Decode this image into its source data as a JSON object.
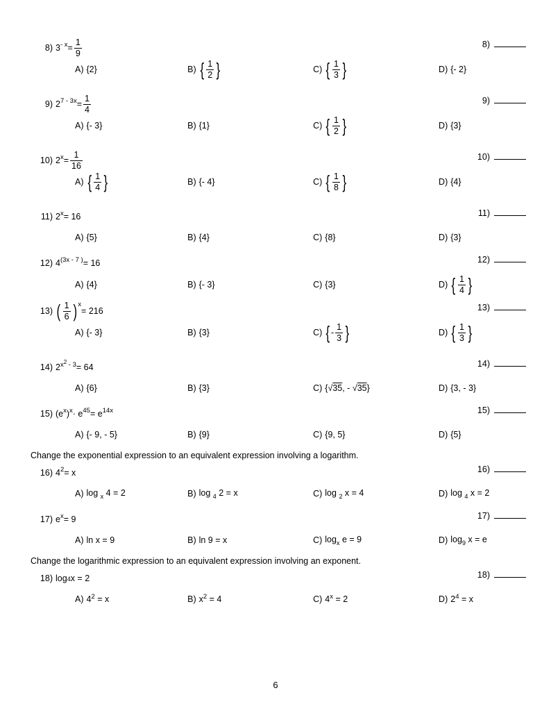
{
  "page_number": "6",
  "sections": [
    {
      "text": "Change the exponential expression to an equivalent expression involving a logarithm.",
      "before": 16
    },
    {
      "text": "Change the logarithmic expression to an equivalent expression involving an exponent.",
      "before": 18
    }
  ],
  "questions": [
    {
      "n": "8",
      "prompt_html": "3<span class='exp'>- x</span> = <span class='frac'><span class='n'>1</span><span class='d'>9</span></span>",
      "a": "{2}",
      "a_frac": null,
      "b_frac": [
        "1",
        "2"
      ],
      "b": null,
      "c_frac": [
        "1",
        "3"
      ],
      "c": null,
      "d": "{- 2}"
    },
    {
      "n": "9",
      "prompt_html": "2<span class='exp'>7 - 3x</span> = <span class='frac'><span class='n'>1</span><span class='d'>4</span></span>",
      "a": "{- 3}",
      "b": "{1}",
      "c_frac": [
        "1",
        "2"
      ],
      "c": null,
      "d": "{3}"
    },
    {
      "n": "10",
      "prompt_html": "2<span class='exp'>x</span> = <span class='frac'><span class='n'>1</span><span class='d'>16</span></span>",
      "a_frac": [
        "1",
        "4"
      ],
      "a": null,
      "b": "{- 4}",
      "c_frac": [
        "1",
        "8"
      ],
      "c": null,
      "d": "{4}"
    },
    {
      "n": "11",
      "prompt_html": "2<span class='exp'>x</span> = 16",
      "a": "{5}",
      "b": "{4}",
      "c": "{8}",
      "d": "{3}",
      "compact": true
    },
    {
      "n": "12",
      "prompt_html": "4<span class='exp'>(3x - 7 )</span> = 16",
      "a": "{4}",
      "b": "{- 3}",
      "c": "{3}",
      "d_frac": [
        "1",
        "4"
      ],
      "d": null,
      "compact": true
    },
    {
      "n": "13",
      "prompt_html": "<span class='cset'><span class='cbrace'>(</span><span class='frac'><span class='n'>1</span><span class='d'>6</span></span><span class='cbrace'>)</span></span><span class='exp' style='top:-10px'>x</span> = 216",
      "a": "{- 3}",
      "b": "{3}",
      "c_neg_frac": [
        "1",
        "3"
      ],
      "c": null,
      "d_frac": [
        "1",
        "3"
      ],
      "d": null
    },
    {
      "n": "14",
      "prompt_html": "2<span class='exp'>x<span style=\"font-size:8px;vertical-align:super\">2</span> - 3</span>= 64",
      "a": "{6}",
      "b": "{3}",
      "c": "{√<span style='text-decoration:overline'>35</span>, - √<span style='text-decoration:overline'>35</span>}",
      "d": "{3, - 3}",
      "compact": true
    },
    {
      "n": "15",
      "prompt_html": "(e<span class='exp'>x</span>)<span class='exp'>x</span> · e<span class='exp'>45</span> = e<span class='exp'>14x</span>",
      "a": "{- 9, - 5}",
      "b": "{9}",
      "c": "{9, 5}",
      "d": "{5}",
      "compact": true
    },
    {
      "n": "16",
      "prompt_html": "4<span class='exp'>2</span> = x",
      "a": "log <span class='sub'>x</span> 4 = 2",
      "b": "log <span class='sub'>4</span> 2 = x",
      "c": "log <span class='sub'>2</span> x = 4",
      "d": "log <span class='sub'>4</span> x = 2",
      "compact": true
    },
    {
      "n": "17",
      "prompt_html": "e<span class='exp'>x</span> = 9",
      "a": "ln x = 9",
      "b": "ln 9 = x",
      "c": "log<span class='sub'>x</span> e = 9",
      "d": "log<span class='sub'>9</span> x = e",
      "compact": true
    },
    {
      "n": "18",
      "prompt_html": "log <span class='sub'>4</span> x = 2",
      "a": "4<span class='exp'>2</span> = x",
      "b": "x<span class='exp'>2</span> = 4",
      "c": "4<span class='exp'>x</span> = 2",
      "d": "2<span class='exp'>4</span> = x",
      "compact": true
    }
  ]
}
